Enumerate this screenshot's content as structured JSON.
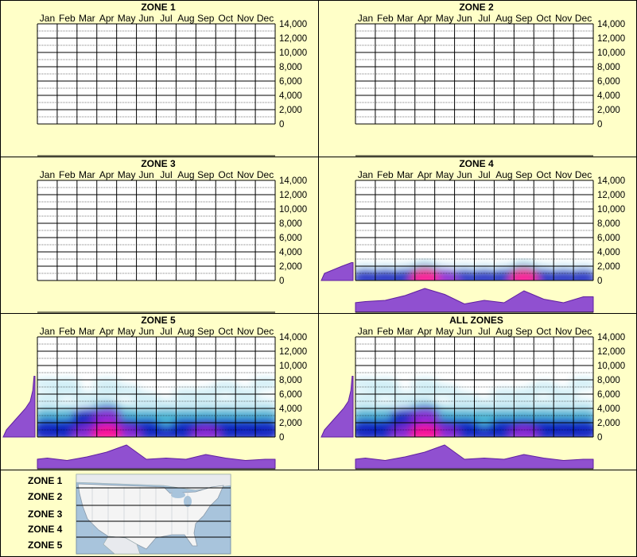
{
  "months": [
    "Jan",
    "Feb",
    "Mar",
    "Apr",
    "May",
    "Jun",
    "Jul",
    "Aug",
    "Sep",
    "Oct",
    "Nov",
    "Dec"
  ],
  "y_ticks": [
    "14,000",
    "12,000",
    "10,000",
    "8,000",
    "6,000",
    "4,000",
    "2,000",
    "0"
  ],
  "map_zone_labels": [
    "ZONE 1",
    "ZONE 2",
    "ZONE 3",
    "ZONE 4",
    "ZONE 5"
  ],
  "colors": {
    "background": "#ffffc8",
    "grid": "#000000",
    "profile_fill": "#9050d0",
    "profile_stroke": "#6020a0",
    "heat_low": "#cfeef6",
    "heat_mid": "#40b0d0",
    "heat_high": "#1020c0",
    "heat_peak": "#ff1090"
  },
  "chart_data": [
    {
      "type": "heatmap",
      "title": "ZONE 1",
      "x_categories": [
        "Jan",
        "Feb",
        "Mar",
        "Apr",
        "May",
        "Jun",
        "Jul",
        "Aug",
        "Sep",
        "Oct",
        "Nov",
        "Dec"
      ],
      "ylim": [
        0,
        14000
      ],
      "density": []
    },
    {
      "type": "heatmap",
      "title": "ZONE 2",
      "x_categories": [
        "Jan",
        "Feb",
        "Mar",
        "Apr",
        "May",
        "Jun",
        "Jul",
        "Aug",
        "Sep",
        "Oct",
        "Nov",
        "Dec"
      ],
      "ylim": [
        0,
        14000
      ],
      "density": []
    },
    {
      "type": "heatmap",
      "title": "ZONE 3",
      "x_categories": [
        "Jan",
        "Feb",
        "Mar",
        "Apr",
        "May",
        "Jun",
        "Jul",
        "Aug",
        "Sep",
        "Oct",
        "Nov",
        "Dec"
      ],
      "ylim": [
        0,
        14000
      ],
      "density": []
    },
    {
      "type": "heatmap",
      "title": "ZONE 4",
      "x_categories": [
        "Jan",
        "Feb",
        "Mar",
        "Apr",
        "May",
        "Jun",
        "Jul",
        "Aug",
        "Sep",
        "Oct",
        "Nov",
        "Dec"
      ],
      "ylim": [
        0,
        14000
      ],
      "density": [
        {
          "month": "Jan",
          "y": 500,
          "v": 0.65
        },
        {
          "month": "Jan",
          "y": 1500,
          "v": 0.3
        },
        {
          "month": "Feb",
          "y": 500,
          "v": 0.7
        },
        {
          "month": "Feb",
          "y": 1500,
          "v": 0.3
        },
        {
          "month": "Mar",
          "y": 500,
          "v": 0.75
        },
        {
          "month": "Mar",
          "y": 1500,
          "v": 0.35
        },
        {
          "month": "Apr",
          "y": 500,
          "v": 1.0
        },
        {
          "month": "Apr",
          "y": 1500,
          "v": 0.45
        },
        {
          "month": "May",
          "y": 500,
          "v": 0.85
        },
        {
          "month": "May",
          "y": 1500,
          "v": 0.35
        },
        {
          "month": "Jun",
          "y": 500,
          "v": 0.6
        },
        {
          "month": "Jun",
          "y": 1500,
          "v": 0.25
        },
        {
          "month": "Jul",
          "y": 500,
          "v": 0.6
        },
        {
          "month": "Jul",
          "y": 1500,
          "v": 0.25
        },
        {
          "month": "Aug",
          "y": 500,
          "v": 0.65
        },
        {
          "month": "Aug",
          "y": 1500,
          "v": 0.25
        },
        {
          "month": "Sep",
          "y": 500,
          "v": 0.95
        },
        {
          "month": "Sep",
          "y": 1500,
          "v": 0.4
        },
        {
          "month": "Oct",
          "y": 500,
          "v": 0.7
        },
        {
          "month": "Oct",
          "y": 1500,
          "v": 0.3
        },
        {
          "month": "Nov",
          "y": 500,
          "v": 0.6
        },
        {
          "month": "Nov",
          "y": 1500,
          "v": 0.25
        },
        {
          "month": "Dec",
          "y": 500,
          "v": 0.7
        },
        {
          "month": "Dec",
          "y": 1500,
          "v": 0.3
        }
      ],
      "monthly_profile": [
        0.45,
        0.5,
        0.7,
        1.0,
        0.75,
        0.35,
        0.5,
        0.4,
        0.9,
        0.55,
        0.4,
        0.65
      ],
      "elevation_profile": [
        {
          "y": 0,
          "v": 1.0
        },
        {
          "y": 1000,
          "v": 0.9
        },
        {
          "y": 2000,
          "v": 0.35
        },
        {
          "y": 2500,
          "v": 0.05
        }
      ]
    },
    {
      "type": "heatmap",
      "title": "ZONE 5",
      "x_categories": [
        "Jan",
        "Feb",
        "Mar",
        "Apr",
        "May",
        "Jun",
        "Jul",
        "Aug",
        "Sep",
        "Oct",
        "Nov",
        "Dec"
      ],
      "ylim": [
        0,
        14000
      ],
      "density": [
        {
          "month": "Jan",
          "y": 500,
          "v": 0.7
        },
        {
          "month": "Jan",
          "y": 1500,
          "v": 0.6
        },
        {
          "month": "Jan",
          "y": 3000,
          "v": 0.45
        },
        {
          "month": "Jan",
          "y": 4000,
          "v": 0.3
        },
        {
          "month": "Jan",
          "y": 5500,
          "v": 0.2
        },
        {
          "month": "Jan",
          "y": 7500,
          "v": 0.12
        },
        {
          "month": "Feb",
          "y": 500,
          "v": 0.7
        },
        {
          "month": "Feb",
          "y": 1500,
          "v": 0.6
        },
        {
          "month": "Feb",
          "y": 3000,
          "v": 0.5
        },
        {
          "month": "Feb",
          "y": 4000,
          "v": 0.3
        },
        {
          "month": "Feb",
          "y": 6500,
          "v": 0.3
        },
        {
          "month": "Feb",
          "y": 7500,
          "v": 0.12
        },
        {
          "month": "Mar",
          "y": 500,
          "v": 0.8
        },
        {
          "month": "Mar",
          "y": 1500,
          "v": 0.7
        },
        {
          "month": "Mar",
          "y": 3000,
          "v": 0.6
        },
        {
          "month": "Mar",
          "y": 4000,
          "v": 0.35
        },
        {
          "month": "Mar",
          "y": 5500,
          "v": 0.2
        },
        {
          "month": "Apr",
          "y": 500,
          "v": 1.0
        },
        {
          "month": "Apr",
          "y": 1500,
          "v": 0.9
        },
        {
          "month": "Apr",
          "y": 3000,
          "v": 0.85
        },
        {
          "month": "Apr",
          "y": 4000,
          "v": 0.4
        },
        {
          "month": "Apr",
          "y": 6000,
          "v": 0.2
        },
        {
          "month": "Apr",
          "y": 7500,
          "v": 0.12
        },
        {
          "month": "May",
          "y": 500,
          "v": 0.8
        },
        {
          "month": "May",
          "y": 1500,
          "v": 0.7
        },
        {
          "month": "May",
          "y": 3000,
          "v": 0.55
        },
        {
          "month": "May",
          "y": 4000,
          "v": 0.3
        },
        {
          "month": "May",
          "y": 6500,
          "v": 0.2
        },
        {
          "month": "Jun",
          "y": 500,
          "v": 0.7
        },
        {
          "month": "Jun",
          "y": 1500,
          "v": 0.6
        },
        {
          "month": "Jun",
          "y": 3000,
          "v": 0.45
        },
        {
          "month": "Jun",
          "y": 4500,
          "v": 0.25
        },
        {
          "month": "Jun",
          "y": 5500,
          "v": 0.15
        },
        {
          "month": "Jul",
          "y": 500,
          "v": 0.7
        },
        {
          "month": "Jul",
          "y": 1500,
          "v": 0.55
        },
        {
          "month": "Jul",
          "y": 3000,
          "v": 0.45
        },
        {
          "month": "Jul",
          "y": 4500,
          "v": 0.25
        },
        {
          "month": "Aug",
          "y": 500,
          "v": 0.75
        },
        {
          "month": "Aug",
          "y": 1500,
          "v": 0.6
        },
        {
          "month": "Aug",
          "y": 3000,
          "v": 0.45
        },
        {
          "month": "Aug",
          "y": 4500,
          "v": 0.25
        },
        {
          "month": "Aug",
          "y": 6000,
          "v": 0.2
        },
        {
          "month": "Sep",
          "y": 500,
          "v": 0.85
        },
        {
          "month": "Sep",
          "y": 1500,
          "v": 0.7
        },
        {
          "month": "Sep",
          "y": 3000,
          "v": 0.55
        },
        {
          "month": "Sep",
          "y": 4500,
          "v": 0.3
        },
        {
          "month": "Sep",
          "y": 6000,
          "v": 0.25
        },
        {
          "month": "Oct",
          "y": 500,
          "v": 0.75
        },
        {
          "month": "Oct",
          "y": 1500,
          "v": 0.6
        },
        {
          "month": "Oct",
          "y": 3000,
          "v": 0.5
        },
        {
          "month": "Oct",
          "y": 4500,
          "v": 0.3
        },
        {
          "month": "Oct",
          "y": 7000,
          "v": 0.15
        },
        {
          "month": "Nov",
          "y": 500,
          "v": 0.7
        },
        {
          "month": "Nov",
          "y": 1500,
          "v": 0.6
        },
        {
          "month": "Nov",
          "y": 3000,
          "v": 0.45
        },
        {
          "month": "Nov",
          "y": 4500,
          "v": 0.25
        },
        {
          "month": "Nov",
          "y": 6000,
          "v": 0.2
        },
        {
          "month": "Dec",
          "y": 500,
          "v": 0.75
        },
        {
          "month": "Dec",
          "y": 1500,
          "v": 0.6
        },
        {
          "month": "Dec",
          "y": 3000,
          "v": 0.5
        },
        {
          "month": "Dec",
          "y": 4500,
          "v": 0.3
        },
        {
          "month": "Dec",
          "y": 7500,
          "v": 0.2
        }
      ],
      "monthly_profile": [
        0.45,
        0.35,
        0.5,
        0.7,
        1.0,
        0.4,
        0.45,
        0.4,
        0.6,
        0.45,
        0.35,
        0.4
      ],
      "elevation_profile": [
        {
          "y": 0,
          "v": 1.0
        },
        {
          "y": 1000,
          "v": 0.9
        },
        {
          "y": 2000,
          "v": 0.7
        },
        {
          "y": 3000,
          "v": 0.5
        },
        {
          "y": 4000,
          "v": 0.3
        },
        {
          "y": 5000,
          "v": 0.15
        },
        {
          "y": 6500,
          "v": 0.07
        },
        {
          "y": 8500,
          "v": 0.03
        }
      ]
    },
    {
      "type": "heatmap",
      "title": "ALL ZONES",
      "x_categories": [
        "Jan",
        "Feb",
        "Mar",
        "Apr",
        "May",
        "Jun",
        "Jul",
        "Aug",
        "Sep",
        "Oct",
        "Nov",
        "Dec"
      ],
      "ylim": [
        0,
        14000
      ],
      "density": [
        {
          "month": "Jan",
          "y": 500,
          "v": 0.7
        },
        {
          "month": "Jan",
          "y": 1500,
          "v": 0.6
        },
        {
          "month": "Jan",
          "y": 3000,
          "v": 0.45
        },
        {
          "month": "Jan",
          "y": 4000,
          "v": 0.3
        },
        {
          "month": "Jan",
          "y": 5500,
          "v": 0.2
        },
        {
          "month": "Jan",
          "y": 7500,
          "v": 0.12
        },
        {
          "month": "Feb",
          "y": 500,
          "v": 0.7
        },
        {
          "month": "Feb",
          "y": 1500,
          "v": 0.6
        },
        {
          "month": "Feb",
          "y": 3000,
          "v": 0.5
        },
        {
          "month": "Feb",
          "y": 4000,
          "v": 0.3
        },
        {
          "month": "Feb",
          "y": 6500,
          "v": 0.3
        },
        {
          "month": "Feb",
          "y": 7500,
          "v": 0.12
        },
        {
          "month": "Mar",
          "y": 500,
          "v": 0.8
        },
        {
          "month": "Mar",
          "y": 1500,
          "v": 0.7
        },
        {
          "month": "Mar",
          "y": 3000,
          "v": 0.6
        },
        {
          "month": "Mar",
          "y": 4000,
          "v": 0.35
        },
        {
          "month": "Mar",
          "y": 5500,
          "v": 0.2
        },
        {
          "month": "Apr",
          "y": 500,
          "v": 1.0
        },
        {
          "month": "Apr",
          "y": 1500,
          "v": 0.9
        },
        {
          "month": "Apr",
          "y": 3000,
          "v": 0.85
        },
        {
          "month": "Apr",
          "y": 4000,
          "v": 0.4
        },
        {
          "month": "Apr",
          "y": 6000,
          "v": 0.2
        },
        {
          "month": "Apr",
          "y": 7500,
          "v": 0.12
        },
        {
          "month": "May",
          "y": 500,
          "v": 0.8
        },
        {
          "month": "May",
          "y": 1500,
          "v": 0.7
        },
        {
          "month": "May",
          "y": 3000,
          "v": 0.55
        },
        {
          "month": "May",
          "y": 4000,
          "v": 0.3
        },
        {
          "month": "May",
          "y": 6500,
          "v": 0.2
        },
        {
          "month": "Jun",
          "y": 500,
          "v": 0.7
        },
        {
          "month": "Jun",
          "y": 1500,
          "v": 0.6
        },
        {
          "month": "Jun",
          "y": 3000,
          "v": 0.45
        },
        {
          "month": "Jun",
          "y": 4500,
          "v": 0.25
        },
        {
          "month": "Jun",
          "y": 5500,
          "v": 0.15
        },
        {
          "month": "Jul",
          "y": 500,
          "v": 0.7
        },
        {
          "month": "Jul",
          "y": 1500,
          "v": 0.55
        },
        {
          "month": "Jul",
          "y": 3000,
          "v": 0.45
        },
        {
          "month": "Jul",
          "y": 4500,
          "v": 0.25
        },
        {
          "month": "Aug",
          "y": 500,
          "v": 0.75
        },
        {
          "month": "Aug",
          "y": 1500,
          "v": 0.6
        },
        {
          "month": "Aug",
          "y": 3000,
          "v": 0.45
        },
        {
          "month": "Aug",
          "y": 4500,
          "v": 0.25
        },
        {
          "month": "Aug",
          "y": 6000,
          "v": 0.2
        },
        {
          "month": "Sep",
          "y": 500,
          "v": 0.9
        },
        {
          "month": "Sep",
          "y": 1500,
          "v": 0.7
        },
        {
          "month": "Sep",
          "y": 3000,
          "v": 0.55
        },
        {
          "month": "Sep",
          "y": 4500,
          "v": 0.3
        },
        {
          "month": "Sep",
          "y": 6000,
          "v": 0.25
        },
        {
          "month": "Oct",
          "y": 500,
          "v": 0.75
        },
        {
          "month": "Oct",
          "y": 1500,
          "v": 0.6
        },
        {
          "month": "Oct",
          "y": 3000,
          "v": 0.5
        },
        {
          "month": "Oct",
          "y": 4500,
          "v": 0.3
        },
        {
          "month": "Oct",
          "y": 7000,
          "v": 0.15
        },
        {
          "month": "Nov",
          "y": 500,
          "v": 0.7
        },
        {
          "month": "Nov",
          "y": 1500,
          "v": 0.6
        },
        {
          "month": "Nov",
          "y": 3000,
          "v": 0.45
        },
        {
          "month": "Nov",
          "y": 4500,
          "v": 0.25
        },
        {
          "month": "Nov",
          "y": 6000,
          "v": 0.2
        },
        {
          "month": "Dec",
          "y": 500,
          "v": 0.75
        },
        {
          "month": "Dec",
          "y": 1500,
          "v": 0.6
        },
        {
          "month": "Dec",
          "y": 3000,
          "v": 0.5
        },
        {
          "month": "Dec",
          "y": 4500,
          "v": 0.3
        },
        {
          "month": "Dec",
          "y": 7500,
          "v": 0.2
        }
      ],
      "monthly_profile": [
        0.45,
        0.35,
        0.5,
        0.7,
        1.0,
        0.4,
        0.45,
        0.4,
        0.6,
        0.45,
        0.35,
        0.4
      ],
      "elevation_profile": [
        {
          "y": 0,
          "v": 1.0
        },
        {
          "y": 1000,
          "v": 0.9
        },
        {
          "y": 2000,
          "v": 0.7
        },
        {
          "y": 3000,
          "v": 0.5
        },
        {
          "y": 4000,
          "v": 0.3
        },
        {
          "y": 5000,
          "v": 0.15
        },
        {
          "y": 6500,
          "v": 0.07
        },
        {
          "y": 8500,
          "v": 0.03
        }
      ]
    }
  ]
}
